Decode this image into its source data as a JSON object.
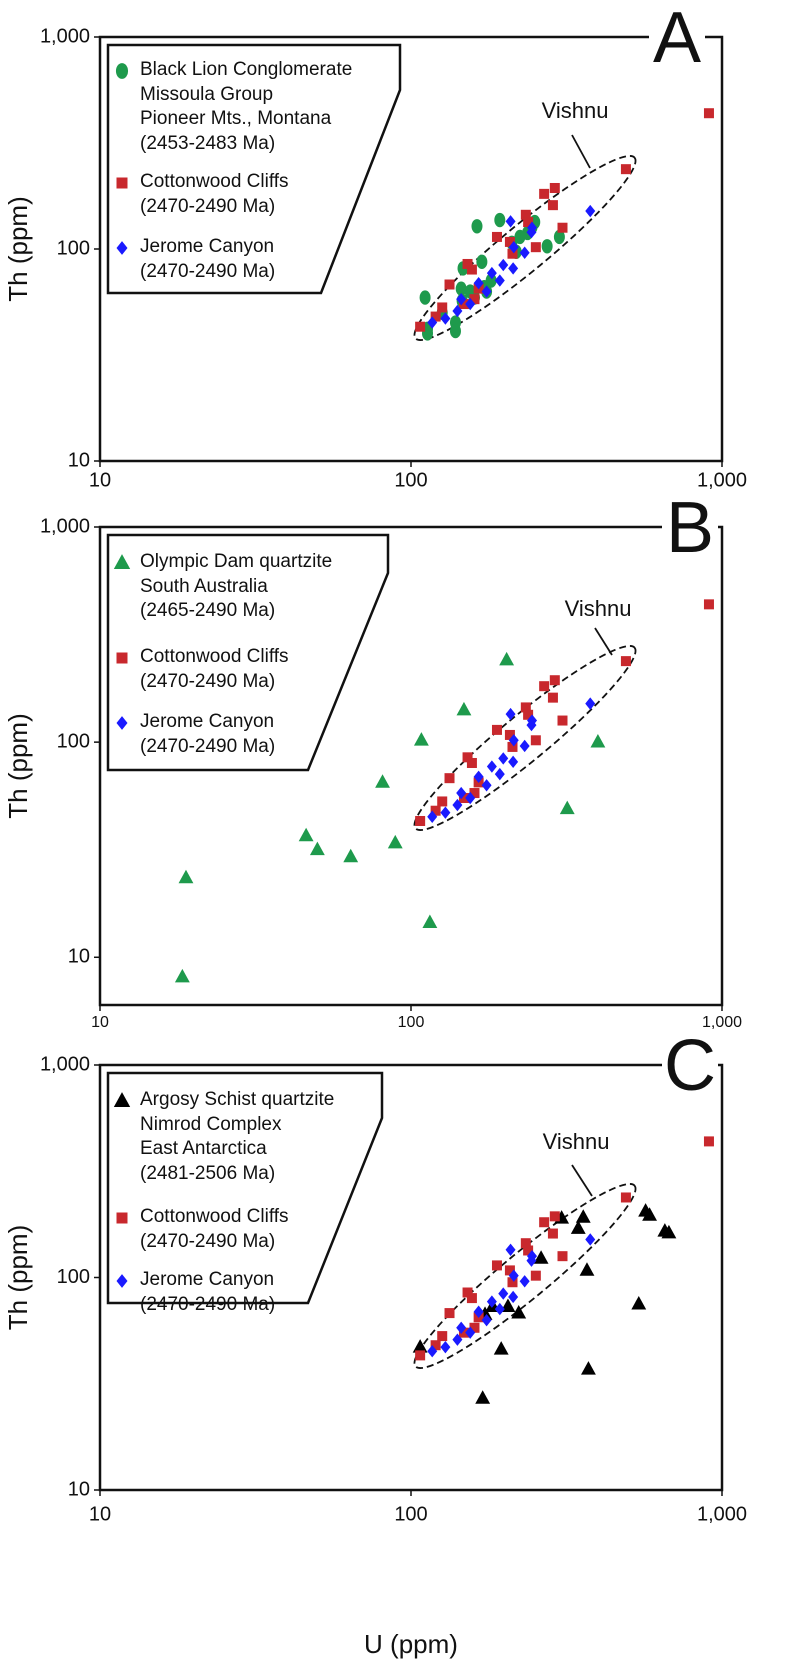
{
  "chart_data": [
    {
      "type": "scatter",
      "panel_label": "A",
      "ylabel": "Th (ppm)",
      "annotation": "Vishnu",
      "xscale": "log",
      "yscale": "log",
      "xlim": [
        10,
        1000
      ],
      "ylim": [
        10,
        1000
      ],
      "xticks": [
        10,
        100,
        {
          "value": 1000,
          "label": "1,000"
        }
      ],
      "yticks": [
        10,
        100,
        {
          "value": 1000,
          "label": "1,000"
        }
      ],
      "series": [
        {
          "name": "Black Lion Conglomerate\nMissoula Group\nPioneer Mts., Montana\n(2453-2483 Ma)",
          "color": "#1e9a4c",
          "marker": "ellipse",
          "x": [
            111,
            113,
            113,
            126,
            139,
            139,
            146,
            145,
            147,
            155,
            163,
            160,
            169,
            172,
            175,
            181,
            193,
            211,
            218,
            224,
            237,
            245,
            250,
            274,
            300
          ],
          "values": [
            59,
            42,
            40,
            50,
            45,
            41,
            57,
            65,
            81,
            63,
            128,
            59,
            87,
            66,
            63,
            71,
            137,
            107,
            97,
            114,
            119,
            127,
            134,
            103,
            114
          ]
        },
        {
          "name": "Cottonwood Cliffs\n(2470-2490 Ma)",
          "color": "#c8282d",
          "marker": "square",
          "x": [
            908,
            491,
            290,
            268,
            286,
            234,
            238,
            307,
            189,
            208,
            252,
            212,
            152,
            157,
            133,
            165,
            160,
            126,
            148,
            120,
            107
          ],
          "values": [
            437,
            238,
            194,
            182,
            161,
            145,
            134,
            126,
            114,
            108,
            102,
            95,
            85,
            80,
            68,
            65,
            58,
            53,
            55,
            48,
            43
          ]
        },
        {
          "name": "Jerome Canyon\n(2470-2490 Ma)",
          "color": "#1a1aff",
          "marker": "diamond",
          "x": [
            377,
            209,
            245,
            244,
            214,
            232,
            198,
            213,
            182,
            193,
            165,
            175,
            145,
            155,
            141,
            129,
            117
          ],
          "values": [
            151,
            135,
            126,
            120,
            102,
            96,
            84,
            81,
            77,
            71,
            69,
            63,
            58,
            55,
            51,
            47,
            45
          ]
        }
      ]
    },
    {
      "type": "scatter",
      "panel_label": "B",
      "ylabel": "Th (ppm)",
      "annotation": "Vishnu",
      "xscale": "log",
      "yscale": "log",
      "xlim": [
        10,
        1000
      ],
      "ylim": [
        6,
        1000
      ],
      "xticks": [
        10,
        100,
        {
          "value": 1000,
          "label": "1,000"
        }
      ],
      "yticks": [
        10,
        100,
        {
          "value": 1000,
          "label": "1,000"
        }
      ],
      "series": [
        {
          "name": "Olympic Dam quartzite\nSouth Australia\n(2465-2490 Ma)",
          "color": "#1e9a4c",
          "marker": "triangle",
          "x": [
            18.4,
            18.9,
            46,
            50,
            64,
            81,
            89,
            108,
            115,
            148,
            203,
            318,
            399
          ],
          "values": [
            8.1,
            23.4,
            36.7,
            31.6,
            29.3,
            65,
            34,
            102,
            14.5,
            141,
            241,
            49,
            100
          ]
        },
        {
          "name": "Cottonwood Cliffs\n(2470-2490 Ma)",
          "color": "#c8282d",
          "marker": "square",
          "x": [
            908,
            491,
            290,
            268,
            286,
            234,
            238,
            307,
            189,
            208,
            252,
            212,
            152,
            157,
            133,
            165,
            160,
            126,
            148,
            120,
            107
          ],
          "values": [
            437,
            238,
            194,
            182,
            161,
            145,
            134,
            126,
            114,
            108,
            102,
            95,
            85,
            80,
            68,
            65,
            58,
            53,
            55,
            48,
            43
          ]
        },
        {
          "name": "Jerome Canyon\n(2470-2490 Ma)",
          "color": "#1a1aff",
          "marker": "diamond",
          "x": [
            377,
            209,
            245,
            244,
            214,
            232,
            198,
            213,
            182,
            193,
            165,
            175,
            145,
            155,
            141,
            129,
            117
          ],
          "values": [
            151,
            135,
            126,
            120,
            102,
            96,
            84,
            81,
            77,
            71,
            69,
            63,
            58,
            55,
            51,
            47,
            45
          ]
        }
      ]
    },
    {
      "type": "scatter",
      "panel_label": "C",
      "ylabel": "Th (ppm)",
      "xlabel": "U (ppm)",
      "annotation": "Vishnu",
      "xscale": "log",
      "yscale": "log",
      "xlim": [
        10,
        1000
      ],
      "ylim": [
        10,
        1000
      ],
      "xticks": [
        10,
        100,
        {
          "value": 1000,
          "label": "1,000"
        }
      ],
      "yticks": [
        10,
        100,
        {
          "value": 1000,
          "label": "1,000"
        }
      ],
      "series": [
        {
          "name": "Argosy Schist quartzite\nNimrod Complex\nEast Antarctica\n(2481-2506 Ma)",
          "color": "#000000",
          "marker": "triangle",
          "x": [
            107,
            170,
            173,
            183,
            195,
            205,
            222,
            262,
            305,
            345,
            358,
            368,
            372,
            540,
            568,
            585,
            655,
            675
          ],
          "values": [
            47,
            27,
            67,
            73,
            46,
            73,
            68,
            123,
            190,
            170,
            192,
            108,
            37,
            75,
            205,
            196,
            165,
            162
          ]
        },
        {
          "name": "Cottonwood Cliffs\n(2470-2490 Ma)",
          "color": "#c8282d",
          "marker": "square",
          "x": [
            908,
            491,
            290,
            268,
            286,
            234,
            238,
            307,
            189,
            208,
            252,
            212,
            152,
            157,
            133,
            165,
            160,
            126,
            148,
            120,
            107
          ],
          "values": [
            437,
            238,
            194,
            182,
            161,
            145,
            134,
            126,
            114,
            108,
            102,
            95,
            85,
            80,
            68,
            65,
            58,
            53,
            55,
            48,
            43
          ]
        },
        {
          "name": "Jerome Canyon\n(2470-2490 Ma)",
          "color": "#1a1aff",
          "marker": "diamond",
          "x": [
            377,
            209,
            245,
            244,
            214,
            232,
            198,
            213,
            182,
            193,
            165,
            175,
            145,
            155,
            141,
            129,
            117
          ],
          "values": [
            151,
            135,
            126,
            120,
            102,
            96,
            84,
            81,
            77,
            71,
            69,
            63,
            58,
            55,
            51,
            47,
            45
          ]
        }
      ]
    }
  ]
}
